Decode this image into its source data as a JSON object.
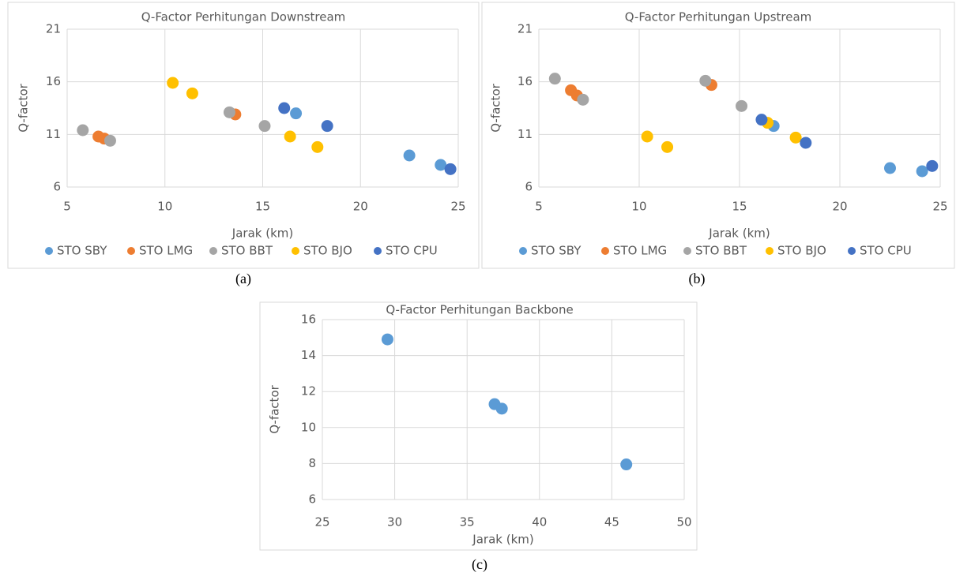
{
  "chart_data": [
    {
      "type": "scatter",
      "title": "Q-Factor Perhitungan Downstream",
      "x_label": "Jarak (km)",
      "y_label": "Q-factor",
      "xlim": [
        5,
        25
      ],
      "xticks": [
        5,
        10,
        15,
        20,
        25
      ],
      "ylim": [
        6,
        21
      ],
      "yticks": [
        6,
        11,
        16,
        21
      ],
      "grid": true,
      "legend": "bottom",
      "series": [
        {
          "name": "STO SBY",
          "color": "#5b9bd5",
          "x": [
            16.7,
            22.5,
            24.1
          ],
          "values": [
            13.0,
            9.0,
            8.1
          ]
        },
        {
          "name": "STO LMG",
          "color": "#ed7d31",
          "x": [
            6.6,
            6.9,
            13.6
          ],
          "values": [
            10.8,
            10.6,
            12.9
          ]
        },
        {
          "name": "STO BBT",
          "color": "#a5a5a5",
          "x": [
            5.8,
            7.2,
            13.3,
            15.1
          ],
          "values": [
            11.4,
            10.4,
            13.1,
            11.8
          ]
        },
        {
          "name": "STO BJO",
          "color": "#ffc000",
          "x": [
            10.4,
            11.4,
            16.4,
            17.8
          ],
          "values": [
            15.9,
            14.9,
            10.8,
            9.8
          ]
        },
        {
          "name": "STO CPU",
          "color": "#4472c4",
          "x": [
            16.1,
            18.3,
            24.6
          ],
          "values": [
            13.5,
            11.8,
            7.7
          ]
        }
      ]
    },
    {
      "type": "scatter",
      "title": "Q-Factor Perhitungan Upstream",
      "x_label": "Jarak (km)",
      "y_label": "Q-factor",
      "xlim": [
        5,
        25
      ],
      "xticks": [
        5,
        10,
        15,
        20,
        25
      ],
      "ylim": [
        6,
        21
      ],
      "yticks": [
        6,
        11,
        16,
        21
      ],
      "grid": true,
      "legend": "bottom",
      "series": [
        {
          "name": "STO SBY",
          "color": "#5b9bd5",
          "x": [
            16.7,
            22.5,
            24.1
          ],
          "values": [
            11.8,
            7.8,
            7.5
          ]
        },
        {
          "name": "STO LMG",
          "color": "#ed7d31",
          "x": [
            6.6,
            6.9,
            13.6
          ],
          "values": [
            15.2,
            14.7,
            15.7
          ]
        },
        {
          "name": "STO BBT",
          "color": "#a5a5a5",
          "x": [
            5.8,
            7.2,
            13.3,
            15.1
          ],
          "values": [
            16.3,
            14.3,
            16.1,
            13.7
          ]
        },
        {
          "name": "STO BJO",
          "color": "#ffc000",
          "x": [
            10.4,
            11.4,
            16.4,
            17.8
          ],
          "values": [
            10.8,
            9.8,
            12.1,
            10.7
          ]
        },
        {
          "name": "STO CPU",
          "color": "#4472c4",
          "x": [
            16.1,
            18.3,
            24.6
          ],
          "values": [
            12.4,
            10.2,
            8.0
          ]
        }
      ]
    },
    {
      "type": "scatter",
      "title": "Q-Factor Perhitungan Backbone",
      "x_label": "Jarak (km)",
      "y_label": "Q-factor",
      "xlim": [
        25,
        50
      ],
      "xticks": [
        25,
        30,
        35,
        40,
        45,
        50
      ],
      "ylim": [
        6,
        16
      ],
      "yticks": [
        6,
        8,
        10,
        12,
        14,
        16
      ],
      "grid": true,
      "color": "#5b9bd5",
      "x": [
        29.5,
        36.9,
        37.4,
        46.0
      ],
      "values": [
        14.9,
        11.3,
        11.05,
        7.95
      ]
    }
  ],
  "captions": [
    "(a)",
    "(b)",
    "(c)"
  ]
}
